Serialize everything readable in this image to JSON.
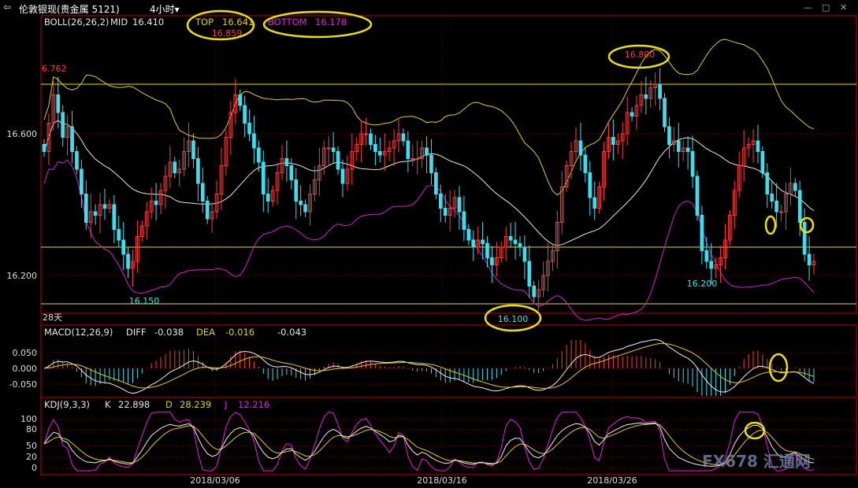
{
  "app": {
    "back_icon": "arrow-left-icon",
    "symbol_name": "伦敦银现(贵金属 5121)",
    "period_label": "4小时",
    "window_controls": [
      "minimize-icon",
      "maximize-icon",
      "close-icon"
    ]
  },
  "colors": {
    "up": "#ff3b3b",
    "down": "#38e0f0",
    "mid": "#e8e8e8",
    "upper": "#e0d000",
    "lower": "#d020d0",
    "hline": "#e8e000",
    "grid": "#7a0000",
    "axis": "#c00000",
    "yellow": "#f0e000",
    "magenta": "#e020e0"
  },
  "boll": {
    "label": "BOLL(26,26,2)",
    "mid_label": "MID",
    "mid_value": "16.410",
    "top_label": "TOP",
    "top_value": "16.641",
    "bottom_label": "BOTTOM",
    "bottom_value": "16.178"
  },
  "macd": {
    "label": "MACD(12,26,9)",
    "diff_label": "DIFF",
    "diff_value": "-0.038",
    "dea_label": "DEA",
    "dea_value": "-0.016",
    "macd_value": "-0.043"
  },
  "kdj": {
    "label": "KDJ(9,3,3)",
    "k_label": "K",
    "k_value": "22.898",
    "d_label": "D",
    "d_value": "28.239",
    "j_label": "J",
    "j_value": "12.216"
  },
  "annotations": {
    "left_top_price": "6.762",
    "max_price": "16.859",
    "high2": "16.800",
    "low1": "16.150",
    "low2": "16.100",
    "low3": "16.200",
    "bar_label": "28天"
  },
  "watermark": "FX678 汇通网",
  "chart_data": [
    {
      "type": "candlestick",
      "title": "伦敦银现(贵金属 5121) 4小时",
      "indicator": "BOLL(26,26,2)",
      "y_ticks": [
        "16.600",
        "16.200"
      ],
      "x_ticks": [
        "2018/03/06",
        "2018/03/16",
        "2018/03/26"
      ],
      "horizontal_lines": [
        16.74,
        16.28,
        16.12
      ],
      "annotated_prices": [
        16.859,
        16.8,
        16.15,
        16.1,
        16.2
      ],
      "close": [
        16.55,
        16.63,
        16.71,
        16.66,
        16.59,
        16.62,
        16.55,
        16.5,
        16.43,
        16.35,
        16.38,
        16.37,
        16.4,
        16.39,
        16.4,
        16.33,
        16.3,
        16.26,
        16.22,
        16.24,
        16.31,
        16.34,
        16.38,
        16.41,
        16.4,
        16.44,
        16.48,
        16.52,
        16.49,
        16.5,
        16.55,
        16.58,
        16.53,
        16.46,
        16.41,
        16.36,
        16.38,
        16.43,
        16.51,
        16.59,
        16.66,
        16.71,
        16.68,
        16.63,
        16.6,
        16.56,
        16.52,
        16.43,
        16.41,
        16.44,
        16.49,
        16.53,
        16.51,
        16.47,
        16.41,
        16.4,
        16.38,
        16.43,
        16.47,
        16.51,
        16.56,
        16.56,
        16.55,
        16.5,
        16.46,
        16.5,
        16.55,
        16.57,
        16.6,
        16.6,
        16.57,
        16.55,
        16.54,
        16.55,
        16.56,
        16.58,
        16.6,
        16.58,
        16.53,
        16.53,
        16.53,
        16.56,
        16.54,
        16.49,
        16.43,
        16.39,
        16.37,
        16.39,
        16.42,
        16.38,
        16.33,
        16.3,
        16.28,
        16.3,
        16.29,
        16.25,
        16.23,
        16.25,
        16.28,
        16.31,
        16.3,
        16.29,
        16.28,
        16.24,
        16.17,
        16.14,
        16.16,
        16.2,
        16.24,
        16.27,
        16.35,
        16.45,
        16.51,
        16.55,
        16.58,
        16.54,
        16.49,
        16.42,
        16.39,
        16.45,
        16.55,
        16.59,
        16.57,
        16.58,
        16.6,
        16.66,
        16.65,
        16.68,
        16.71,
        16.7,
        16.73,
        16.74,
        16.7,
        16.62,
        16.57,
        16.58,
        16.55,
        16.56,
        16.55,
        16.48,
        16.37,
        16.27,
        16.24,
        16.22,
        16.23,
        16.25,
        16.3,
        16.37,
        16.44,
        16.51,
        16.56,
        16.57,
        16.58,
        16.55,
        16.49,
        16.43,
        16.41,
        16.38,
        16.38,
        16.43,
        16.46,
        16.44,
        16.35,
        16.26,
        16.23,
        16.24
      ]
    },
    {
      "type": "bar+line",
      "indicator": "MACD(12,26,9)",
      "y_ticks": [
        "0.050",
        "0.000",
        "-0.050"
      ],
      "series": [
        {
          "name": "DIFF",
          "last": -0.038
        },
        {
          "name": "DEA",
          "last": -0.016
        },
        {
          "name": "MACD",
          "last": -0.043
        }
      ]
    },
    {
      "type": "line",
      "indicator": "KDJ(9,3,3)",
      "y_ticks": [
        "100",
        "80",
        "50",
        "20",
        "0"
      ],
      "series": [
        {
          "name": "K",
          "last": 22.898
        },
        {
          "name": "D",
          "last": 28.239
        },
        {
          "name": "J",
          "last": 12.216
        }
      ]
    }
  ]
}
